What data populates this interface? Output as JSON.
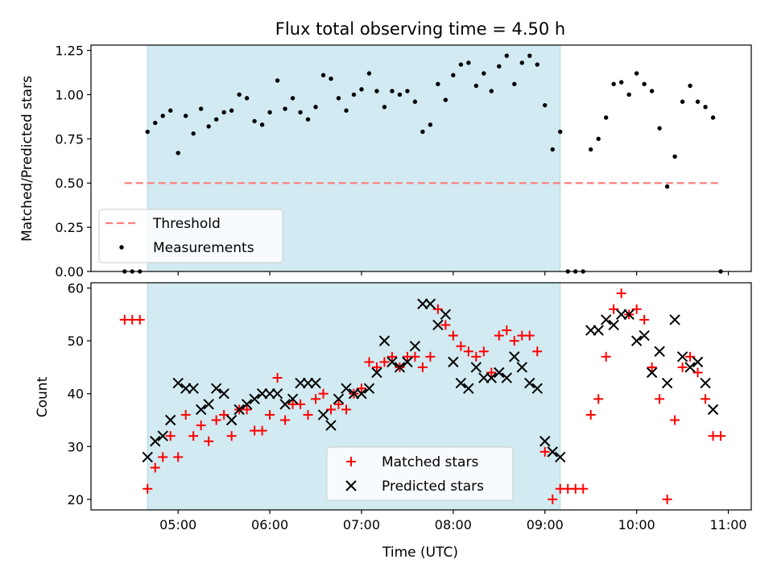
{
  "chart_data": [
    {
      "type": "scatter",
      "title": "Flux total observing time = 4.50 h",
      "xlabel": "",
      "ylabel": "Matched/Predicted stars",
      "ylim": [
        0,
        1.28
      ],
      "yticks": [
        "0.00",
        "0.25",
        "0.50",
        "0.75",
        "1.00",
        "1.25"
      ],
      "ytick_values": [
        0,
        0.25,
        0.5,
        0.75,
        1.0,
        1.25
      ],
      "xlim": [
        "04:03",
        "11:15"
      ],
      "shaded_interval": [
        "04:40",
        "09:10"
      ],
      "shade_color": "#add8e6",
      "threshold": {
        "name": "Threshold",
        "value": 0.5,
        "x_range": [
          "04:25",
          "10:55"
        ],
        "color": "#ff7f7f"
      },
      "legend": {
        "position": "lower-left",
        "entries": [
          "Threshold",
          "Measurements"
        ]
      },
      "series": [
        {
          "name": "Measurements",
          "color": "#000000",
          "marker": "dot",
          "points": [
            [
              "04:25",
              0.0
            ],
            [
              "04:30",
              0.0
            ],
            [
              "04:35",
              0.0
            ],
            [
              "04:40",
              0.79
            ],
            [
              "04:45",
              0.84
            ],
            [
              "04:50",
              0.88
            ],
            [
              "04:55",
              0.91
            ],
            [
              "05:00",
              0.67
            ],
            [
              "05:05",
              0.88
            ],
            [
              "05:10",
              0.78
            ],
            [
              "05:15",
              0.92
            ],
            [
              "05:20",
              0.82
            ],
            [
              "05:25",
              0.86
            ],
            [
              "05:30",
              0.9
            ],
            [
              "05:35",
              0.91
            ],
            [
              "05:40",
              1.0
            ],
            [
              "05:45",
              0.98
            ],
            [
              "05:50",
              0.85
            ],
            [
              "05:55",
              0.83
            ],
            [
              "06:00",
              0.9
            ],
            [
              "06:05",
              1.08
            ],
            [
              "06:10",
              0.92
            ],
            [
              "06:15",
              0.98
            ],
            [
              "06:20",
              0.9
            ],
            [
              "06:25",
              0.86
            ],
            [
              "06:30",
              0.93
            ],
            [
              "06:35",
              1.11
            ],
            [
              "06:40",
              1.09
            ],
            [
              "06:45",
              0.98
            ],
            [
              "06:50",
              0.91
            ],
            [
              "06:55",
              1.0
            ],
            [
              "07:00",
              1.03
            ],
            [
              "07:05",
              1.12
            ],
            [
              "07:10",
              1.02
            ],
            [
              "07:15",
              0.93
            ],
            [
              "07:20",
              1.02
            ],
            [
              "07:25",
              1.0
            ],
            [
              "07:30",
              1.02
            ],
            [
              "07:35",
              0.96
            ],
            [
              "07:40",
              0.79
            ],
            [
              "07:45",
              0.83
            ],
            [
              "07:50",
              1.06
            ],
            [
              "07:55",
              0.97
            ],
            [
              "08:00",
              1.11
            ],
            [
              "08:05",
              1.17
            ],
            [
              "08:10",
              1.18
            ],
            [
              "08:15",
              1.05
            ],
            [
              "08:20",
              1.12
            ],
            [
              "08:25",
              1.02
            ],
            [
              "08:30",
              1.16
            ],
            [
              "08:35",
              1.22
            ],
            [
              "08:40",
              1.06
            ],
            [
              "08:45",
              1.18
            ],
            [
              "08:50",
              1.22
            ],
            [
              "08:55",
              1.17
            ],
            [
              "09:00",
              0.94
            ],
            [
              "09:05",
              0.69
            ],
            [
              "09:10",
              0.79
            ],
            [
              "09:15",
              0.0
            ],
            [
              "09:20",
              0.0
            ],
            [
              "09:25",
              0.0
            ],
            [
              "09:30",
              0.69
            ],
            [
              "09:35",
              0.75
            ],
            [
              "09:40",
              0.87
            ],
            [
              "09:45",
              1.06
            ],
            [
              "09:50",
              1.07
            ],
            [
              "09:55",
              1.0
            ],
            [
              "10:00",
              1.12
            ],
            [
              "10:05",
              1.06
            ],
            [
              "10:10",
              1.02
            ],
            [
              "10:15",
              0.81
            ],
            [
              "10:20",
              0.48
            ],
            [
              "10:25",
              0.65
            ],
            [
              "10:30",
              0.96
            ],
            [
              "10:35",
              1.05
            ],
            [
              "10:40",
              0.96
            ],
            [
              "10:45",
              0.93
            ],
            [
              "10:50",
              0.87
            ],
            [
              "10:55",
              0.0
            ]
          ]
        }
      ]
    },
    {
      "type": "scatter",
      "title": "",
      "xlabel": "Time (UTC)",
      "ylabel": "Count",
      "ylim": [
        18,
        61
      ],
      "yticks": [
        "20",
        "30",
        "40",
        "50",
        "60"
      ],
      "ytick_values": [
        20,
        30,
        40,
        50,
        60
      ],
      "xlim": [
        "04:03",
        "11:15"
      ],
      "xticks": [
        "05:00",
        "06:00",
        "07:00",
        "08:00",
        "09:00",
        "10:00",
        "11:00"
      ],
      "shaded_interval": [
        "04:40",
        "09:10"
      ],
      "shade_color": "#add8e6",
      "legend": {
        "position": "bottom-center",
        "entries": [
          "Matched stars",
          "Predicted stars"
        ]
      },
      "series": [
        {
          "name": "Matched stars",
          "color": "#ff0000",
          "marker": "plus",
          "points": [
            [
              "04:25",
              54
            ],
            [
              "04:30",
              54
            ],
            [
              "04:35",
              54
            ],
            [
              "04:40",
              22
            ],
            [
              "04:45",
              26
            ],
            [
              "04:50",
              28
            ],
            [
              "04:55",
              32
            ],
            [
              "05:00",
              28
            ],
            [
              "05:05",
              36
            ],
            [
              "05:10",
              32
            ],
            [
              "05:15",
              34
            ],
            [
              "05:20",
              31
            ],
            [
              "05:25",
              35
            ],
            [
              "05:30",
              36
            ],
            [
              "05:35",
              32
            ],
            [
              "05:40",
              37
            ],
            [
              "05:45",
              37
            ],
            [
              "05:50",
              33
            ],
            [
              "05:55",
              33
            ],
            [
              "06:00",
              36
            ],
            [
              "06:05",
              43
            ],
            [
              "06:10",
              35
            ],
            [
              "06:15",
              38
            ],
            [
              "06:20",
              38
            ],
            [
              "06:25",
              36
            ],
            [
              "06:30",
              39
            ],
            [
              "06:35",
              40
            ],
            [
              "06:40",
              37
            ],
            [
              "06:45",
              38
            ],
            [
              "06:50",
              37
            ],
            [
              "06:55",
              40
            ],
            [
              "07:00",
              41
            ],
            [
              "07:05",
              46
            ],
            [
              "07:10",
              45
            ],
            [
              "07:15",
              46
            ],
            [
              "07:20",
              47
            ],
            [
              "07:25",
              45
            ],
            [
              "07:30",
              47
            ],
            [
              "07:35",
              47
            ],
            [
              "07:40",
              45
            ],
            [
              "07:45",
              47
            ],
            [
              "07:50",
              56
            ],
            [
              "07:55",
              53
            ],
            [
              "08:00",
              51
            ],
            [
              "08:05",
              49
            ],
            [
              "08:10",
              48
            ],
            [
              "08:15",
              47
            ],
            [
              "08:20",
              48
            ],
            [
              "08:25",
              44
            ],
            [
              "08:30",
              51
            ],
            [
              "08:35",
              52
            ],
            [
              "08:40",
              50
            ],
            [
              "08:45",
              51
            ],
            [
              "08:50",
              51
            ],
            [
              "08:55",
              48
            ],
            [
              "09:00",
              29
            ],
            [
              "09:05",
              20
            ],
            [
              "09:10",
              22
            ],
            [
              "09:15",
              22
            ],
            [
              "09:20",
              22
            ],
            [
              "09:25",
              22
            ],
            [
              "09:30",
              36
            ],
            [
              "09:35",
              39
            ],
            [
              "09:40",
              47
            ],
            [
              "09:45",
              56
            ],
            [
              "09:50",
              59
            ],
            [
              "09:55",
              55
            ],
            [
              "10:00",
              56
            ],
            [
              "10:05",
              54
            ],
            [
              "10:10",
              45
            ],
            [
              "10:15",
              39
            ],
            [
              "10:20",
              20
            ],
            [
              "10:25",
              35
            ],
            [
              "10:30",
              45
            ],
            [
              "10:35",
              47
            ],
            [
              "10:40",
              44
            ],
            [
              "10:45",
              39
            ],
            [
              "10:50",
              32
            ],
            [
              "10:55",
              32
            ]
          ]
        },
        {
          "name": "Predicted stars",
          "color": "#000000",
          "marker": "x",
          "points": [
            [
              "04:40",
              28
            ],
            [
              "04:45",
              31
            ],
            [
              "04:50",
              32
            ],
            [
              "04:55",
              35
            ],
            [
              "05:00",
              42
            ],
            [
              "05:05",
              41
            ],
            [
              "05:10",
              41
            ],
            [
              "05:15",
              37
            ],
            [
              "05:20",
              38
            ],
            [
              "05:25",
              41
            ],
            [
              "05:30",
              40
            ],
            [
              "05:35",
              35
            ],
            [
              "05:40",
              37
            ],
            [
              "05:45",
              38
            ],
            [
              "05:50",
              39
            ],
            [
              "05:55",
              40
            ],
            [
              "06:00",
              40
            ],
            [
              "06:05",
              40
            ],
            [
              "06:10",
              38
            ],
            [
              "06:15",
              39
            ],
            [
              "06:20",
              42
            ],
            [
              "06:25",
              42
            ],
            [
              "06:30",
              42
            ],
            [
              "06:35",
              36
            ],
            [
              "06:40",
              34
            ],
            [
              "06:45",
              39
            ],
            [
              "06:50",
              41
            ],
            [
              "06:55",
              40
            ],
            [
              "07:00",
              40
            ],
            [
              "07:05",
              41
            ],
            [
              "07:10",
              44
            ],
            [
              "07:15",
              50
            ],
            [
              "07:20",
              46
            ],
            [
              "07:25",
              45
            ],
            [
              "07:30",
              46
            ],
            [
              "07:35",
              49
            ],
            [
              "07:40",
              57
            ],
            [
              "07:45",
              57
            ],
            [
              "07:50",
              53
            ],
            [
              "07:55",
              55
            ],
            [
              "08:00",
              46
            ],
            [
              "08:05",
              42
            ],
            [
              "08:10",
              41
            ],
            [
              "08:15",
              45
            ],
            [
              "08:20",
              43
            ],
            [
              "08:25",
              43
            ],
            [
              "08:30",
              44
            ],
            [
              "08:35",
              43
            ],
            [
              "08:40",
              47
            ],
            [
              "08:45",
              45
            ],
            [
              "08:50",
              42
            ],
            [
              "08:55",
              41
            ],
            [
              "09:00",
              31
            ],
            [
              "09:05",
              29
            ],
            [
              "09:10",
              28
            ],
            [
              "09:30",
              52
            ],
            [
              "09:35",
              52
            ],
            [
              "09:40",
              54
            ],
            [
              "09:45",
              53
            ],
            [
              "09:50",
              55
            ],
            [
              "09:55",
              55
            ],
            [
              "10:00",
              50
            ],
            [
              "10:05",
              51
            ],
            [
              "10:10",
              44
            ],
            [
              "10:15",
              48
            ],
            [
              "10:20",
              42
            ],
            [
              "10:25",
              54
            ],
            [
              "10:30",
              47
            ],
            [
              "10:35",
              45
            ],
            [
              "10:40",
              46
            ],
            [
              "10:45",
              42
            ],
            [
              "10:50",
              37
            ]
          ]
        }
      ]
    }
  ]
}
